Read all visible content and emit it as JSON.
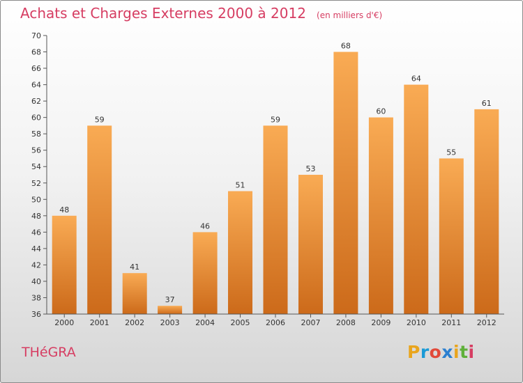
{
  "header": {
    "title": "Achats et Charges Externes 2000 à 2012",
    "unit": "(en milliers d'€)"
  },
  "footer": {
    "city": "THéGRA",
    "logo_letters": [
      "P",
      "r",
      "o",
      "x",
      "i",
      "t",
      "i"
    ],
    "logo_colors": [
      "#e9a51d",
      "#1a9ad6",
      "#e24a3a",
      "#2b7fd0",
      "#e9a51d",
      "#5fb03a",
      "#d63d62"
    ]
  },
  "colors": {
    "title": "#d63d62",
    "bar_top": "#f9ab54",
    "bar_bottom": "#cc6a1a",
    "axis": "#555555"
  },
  "chart_data": {
    "type": "bar",
    "categories": [
      "2000",
      "2001",
      "2002",
      "2003",
      "2004",
      "2005",
      "2006",
      "2007",
      "2008",
      "2009",
      "2010",
      "2011",
      "2012"
    ],
    "values": [
      48,
      59,
      41,
      37,
      46,
      51,
      59,
      53,
      68,
      60,
      64,
      55,
      61
    ],
    "title": "Achats et Charges Externes 2000 à 2012",
    "ylim": [
      36,
      70
    ],
    "yticks": [
      36,
      38,
      40,
      42,
      44,
      46,
      48,
      50,
      52,
      54,
      56,
      58,
      60,
      62,
      64,
      66,
      68,
      70
    ],
    "grid": false
  }
}
